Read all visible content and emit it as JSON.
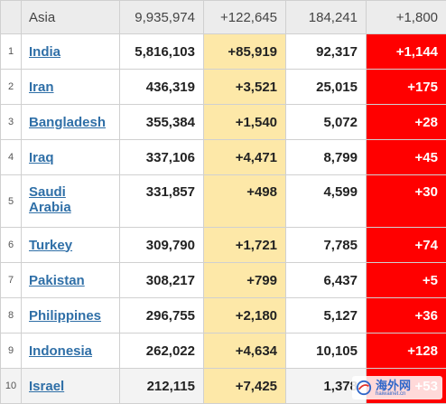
{
  "header": {
    "region": "Asia",
    "total_cases": "9,935,974",
    "new_cases": "+122,645",
    "total_deaths": "184,241",
    "new_deaths": "+1,800"
  },
  "rows": [
    {
      "rank": "1",
      "country": "India",
      "total_cases": "5,816,103",
      "new_cases": "+85,919",
      "total_deaths": "92,317",
      "new_deaths": "+1,144"
    },
    {
      "rank": "2",
      "country": "Iran",
      "total_cases": "436,319",
      "new_cases": "+3,521",
      "total_deaths": "25,015",
      "new_deaths": "+175"
    },
    {
      "rank": "3",
      "country": "Bangladesh",
      "total_cases": "355,384",
      "new_cases": "+1,540",
      "total_deaths": "5,072",
      "new_deaths": "+28"
    },
    {
      "rank": "4",
      "country": "Iraq",
      "total_cases": "337,106",
      "new_cases": "+4,471",
      "total_deaths": "8,799",
      "new_deaths": "+45"
    },
    {
      "rank": "5",
      "country_line1": "Saudi",
      "country_line2": "Arabia",
      "total_cases": "331,857",
      "new_cases": "+498",
      "total_deaths": "4,599",
      "new_deaths": "+30"
    },
    {
      "rank": "6",
      "country": "Turkey",
      "total_cases": "309,790",
      "new_cases": "+1,721",
      "total_deaths": "7,785",
      "new_deaths": "+74"
    },
    {
      "rank": "7",
      "country": "Pakistan",
      "total_cases": "308,217",
      "new_cases": "+799",
      "total_deaths": "6,437",
      "new_deaths": "+5"
    },
    {
      "rank": "8",
      "country": "Philippines",
      "total_cases": "296,755",
      "new_cases": "+2,180",
      "total_deaths": "5,127",
      "new_deaths": "+36"
    },
    {
      "rank": "9",
      "country": "Indonesia",
      "total_cases": "262,022",
      "new_cases": "+4,634",
      "total_deaths": "10,105",
      "new_deaths": "+128"
    },
    {
      "rank": "10",
      "country": "Israel",
      "total_cases": "212,115",
      "new_cases": "+7,425",
      "total_deaths": "1,378",
      "new_deaths": "+53"
    }
  ],
  "watermark": {
    "main": "海外网",
    "sub": "haiwainet.cn"
  },
  "colors": {
    "new_cases_bg": "#fde8a8",
    "new_deaths_bg": "#ff0000",
    "link": "#2f6fa7",
    "header_bg": "#ececec"
  }
}
